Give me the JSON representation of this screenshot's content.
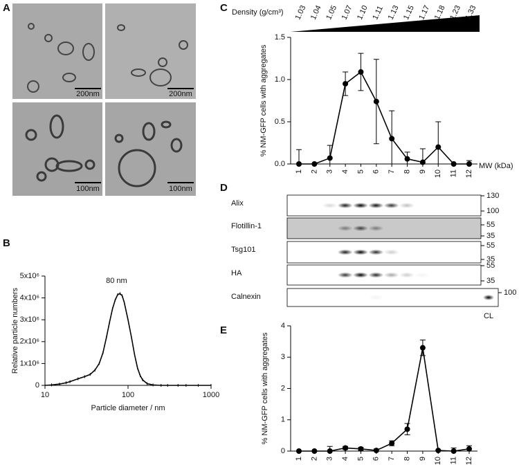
{
  "micrographs": {
    "panel": "A",
    "scale_bars": [
      "200nm",
      "200nm",
      "100nm",
      "100nm"
    ]
  },
  "blot": {
    "panel": "D",
    "mw_label": "MW (kDa)",
    "lane_label": "CL",
    "rows": [
      {
        "name": "Alix",
        "markers": [
          130,
          100
        ]
      },
      {
        "name": "Flotillin-1",
        "markers": [
          55,
          35
        ]
      },
      {
        "name": "Tsg101",
        "markers": [
          55,
          35
        ]
      },
      {
        "name": "HA",
        "markers": [
          55,
          35
        ]
      },
      {
        "name": "Calnexin",
        "markers": [
          100
        ]
      }
    ]
  },
  "chart_data": [
    {
      "panel": "B",
      "type": "line",
      "color": "#000000",
      "xscale": "log",
      "x": [
        10,
        12,
        15,
        18,
        20,
        25,
        30,
        35,
        40,
        45,
        50,
        55,
        60,
        65,
        70,
        75,
        80,
        85,
        90,
        100,
        110,
        120,
        130,
        140,
        150,
        170,
        200,
        250,
        300,
        400,
        500,
        700,
        1000
      ],
      "values": [
        0,
        20000,
        60000,
        120000,
        170000,
        300000,
        400000,
        500000,
        700000,
        1000000,
        1500000,
        2200000,
        2900000,
        3500000,
        3900000,
        4150000,
        4200000,
        4100000,
        3800000,
        3000000,
        2200000,
        1400000,
        800000,
        450000,
        250000,
        80000,
        20000,
        0,
        0,
        0,
        0,
        0,
        0
      ],
      "xlim": [
        10,
        1000
      ],
      "xticks": [
        10,
        100,
        1000
      ],
      "ylim": [
        0,
        5000000
      ],
      "yticks": [
        0,
        {
          "value": 1000000,
          "label": "1x10⁶"
        },
        {
          "value": 2000000,
          "label": "2x10⁶"
        },
        {
          "value": 3000000,
          "label": "3x10⁶"
        },
        {
          "value": 4000000,
          "label": "4x10⁶"
        },
        {
          "value": 5000000,
          "label": "5x10⁶"
        }
      ],
      "x_label": "Particle diameter / nm",
      "y_label": "Relative particle numbers",
      "annotation": "80 nm"
    },
    {
      "panel": "C",
      "type": "line",
      "color": "#000000",
      "density_label": "Density (g/cm³)",
      "densities": [
        "1.03",
        "1.04",
        "1.05",
        "1.07",
        "1.10",
        "1.11",
        "1.13",
        "1.15",
        "1.17",
        "1.18",
        "1.23",
        "1.33"
      ],
      "categories": [
        1,
        2,
        3,
        4,
        5,
        6,
        7,
        8,
        9,
        10,
        11,
        12
      ],
      "values": [
        0,
        0,
        0.07,
        0.95,
        1.09,
        0.74,
        0.3,
        0.06,
        0.02,
        0.2,
        0,
        0
      ],
      "errors": [
        0.17,
        0,
        0.15,
        0.14,
        0.22,
        0.5,
        0.33,
        0.08,
        0.16,
        0.3,
        0,
        0.04
      ],
      "ylim": [
        0,
        1.5
      ],
      "yticks": [
        {
          "value": 0,
          "label": "0.0"
        },
        {
          "value": 0.5,
          "label": "0.5"
        },
        {
          "value": 1,
          "label": "1.0"
        },
        {
          "value": 1.5,
          "label": "1.5"
        }
      ],
      "y_label": "% NM-GFP cells with aggregates"
    },
    {
      "panel": "E",
      "type": "line",
      "color": "#000000",
      "categories": [
        1,
        2,
        3,
        4,
        5,
        6,
        7,
        8,
        9,
        10,
        11,
        12
      ],
      "values": [
        0,
        0,
        0,
        0.1,
        0.07,
        0.02,
        0.25,
        0.7,
        3.3,
        0.02,
        0,
        0.07
      ],
      "errors": [
        0,
        0,
        0.15,
        0.05,
        0.05,
        0.05,
        0.08,
        0.18,
        0.25,
        0.02,
        0.1,
        0.1
      ],
      "ylim": [
        0,
        4
      ],
      "yticks": [
        0,
        1,
        2,
        3,
        4
      ],
      "y_label": "% NM-GFP cells with aggregates"
    }
  ]
}
